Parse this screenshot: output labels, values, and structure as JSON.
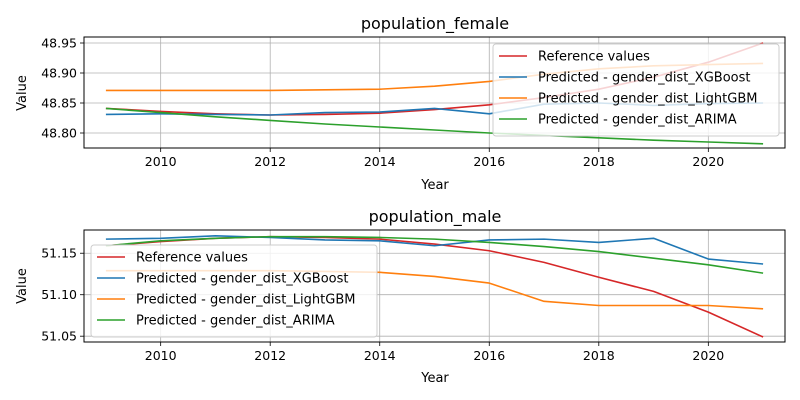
{
  "chart_data": [
    {
      "type": "line",
      "title": "population_female",
      "xlabel": "Year",
      "ylabel": "Value",
      "xlim": [
        2008.6,
        2021.4
      ],
      "ylim": [
        48.775,
        48.96
      ],
      "xticks": [
        2010,
        2012,
        2014,
        2016,
        2018,
        2020
      ],
      "yticks": [
        48.8,
        48.85,
        48.9,
        48.95
      ],
      "ytick_labels": [
        "48.80",
        "48.85",
        "48.90",
        "48.95"
      ],
      "grid": true,
      "legend_position": "upper right",
      "x": [
        2009,
        2010,
        2011,
        2012,
        2013,
        2014,
        2015,
        2016,
        2017,
        2018,
        2019,
        2020,
        2021
      ],
      "series": [
        {
          "name": "Reference values",
          "color": "#d62728",
          "values": [
            48.841,
            48.836,
            48.832,
            48.83,
            48.831,
            48.833,
            48.839,
            48.847,
            48.859,
            48.873,
            48.893,
            48.918,
            48.95
          ]
        },
        {
          "name": "Predicted - gender_dist_XGBoost",
          "color": "#1f77b4",
          "values": [
            48.831,
            48.832,
            48.831,
            48.83,
            48.834,
            48.835,
            48.841,
            48.832,
            48.848,
            48.85,
            48.846,
            48.849,
            48.85
          ]
        },
        {
          "name": "Predicted - gender_dist_LightGBM",
          "color": "#ff7f0e",
          "values": [
            48.871,
            48.871,
            48.871,
            48.871,
            48.872,
            48.873,
            48.878,
            48.886,
            48.898,
            48.907,
            48.912,
            48.914,
            48.916
          ]
        },
        {
          "name": "Predicted - gender_dist_ARIMA",
          "color": "#2ca02c",
          "values": [
            48.841,
            48.834,
            48.827,
            48.821,
            48.815,
            48.81,
            48.805,
            48.8,
            48.796,
            48.792,
            48.788,
            48.785,
            48.782
          ]
        }
      ]
    },
    {
      "type": "line",
      "title": "population_male",
      "xlabel": "Year",
      "ylabel": "Value",
      "xlim": [
        2008.6,
        2021.4
      ],
      "ylim": [
        51.043,
        51.178
      ],
      "xticks": [
        2010,
        2012,
        2014,
        2016,
        2018,
        2020
      ],
      "yticks": [
        51.05,
        51.1,
        51.15
      ],
      "ytick_labels": [
        "51.05",
        "51.10",
        "51.15"
      ],
      "grid": true,
      "legend_position": "center left",
      "x": [
        2009,
        2010,
        2011,
        2012,
        2013,
        2014,
        2015,
        2016,
        2017,
        2018,
        2019,
        2020,
        2021
      ],
      "series": [
        {
          "name": "Reference values",
          "color": "#d62728",
          "values": [
            51.159,
            51.164,
            51.168,
            51.17,
            51.169,
            51.167,
            51.161,
            51.153,
            51.139,
            51.121,
            51.104,
            51.079,
            51.049
          ]
        },
        {
          "name": "Predicted - gender_dist_XGBoost",
          "color": "#1f77b4",
          "values": [
            51.167,
            51.168,
            51.171,
            51.169,
            51.166,
            51.165,
            51.159,
            51.166,
            51.167,
            51.163,
            51.168,
            51.143,
            51.137
          ]
        },
        {
          "name": "Predicted - gender_dist_LightGBM",
          "color": "#ff7f0e",
          "values": [
            51.129,
            51.129,
            51.129,
            51.129,
            51.128,
            51.127,
            51.122,
            51.114,
            51.092,
            51.087,
            51.087,
            51.087,
            51.083
          ]
        },
        {
          "name": "Predicted - gender_dist_ARIMA",
          "color": "#2ca02c",
          "values": [
            51.159,
            51.165,
            51.168,
            51.17,
            51.17,
            51.169,
            51.167,
            51.163,
            51.158,
            51.152,
            51.144,
            51.136,
            51.126
          ]
        }
      ]
    }
  ]
}
